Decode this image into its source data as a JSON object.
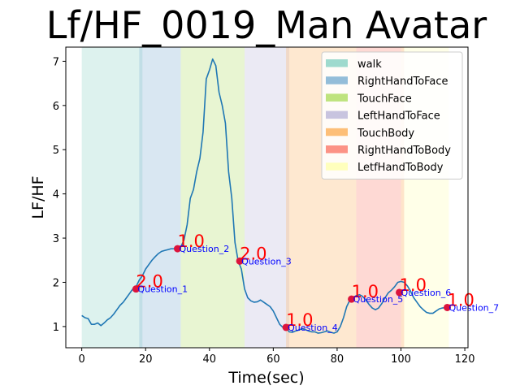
{
  "chart_data": {
    "type": "line",
    "title": "Lf/HF_0019_Man Avatar",
    "xlabel": "Time(sec)",
    "ylabel": "LF/HF",
    "xlim": [
      -5,
      121
    ],
    "ylim": [
      0.52,
      7.32
    ],
    "x_ticks": [
      0,
      20,
      40,
      60,
      80,
      100,
      120
    ],
    "y_ticks": [
      1,
      2,
      3,
      4,
      5,
      6,
      7
    ],
    "grid": false,
    "legend_placement": "top-right",
    "line_color": "#1f77b4",
    "phases": [
      {
        "name": "walk",
        "start": 0,
        "end": 19,
        "color": "#8dd3c7"
      },
      {
        "name": "RightHandToFace",
        "start": 18,
        "end": 31,
        "color": "#80b1d3"
      },
      {
        "name": "TouchFace",
        "start": 31,
        "end": 51,
        "color": "#b3de69"
      },
      {
        "name": "LeftHandToFace",
        "start": 51,
        "end": 65,
        "color": "#bebada"
      },
      {
        "name": "TouchBody",
        "start": 64,
        "end": 86,
        "color": "#fdb462"
      },
      {
        "name": "RightHandToBody",
        "start": 86,
        "end": 101,
        "color": "#fb8072"
      },
      {
        "name": "LetfHandToBody",
        "start": 100,
        "end": 115,
        "color": "#ffffb3"
      }
    ],
    "series": [
      {
        "x": [
          0,
          1,
          2,
          3,
          4,
          5,
          6,
          7,
          8,
          9,
          10,
          11,
          12,
          13,
          14,
          15,
          16,
          17,
          18,
          19,
          20,
          21,
          22,
          23,
          24,
          25,
          26,
          27,
          28,
          29,
          30,
          31,
          32,
          33,
          34,
          35,
          36,
          37,
          38,
          39,
          40,
          41,
          42,
          43,
          44,
          45,
          46,
          47,
          48,
          49,
          50,
          51,
          52,
          53,
          54,
          55,
          56,
          57,
          58,
          59,
          60,
          61,
          62,
          63,
          64,
          65,
          66,
          67,
          68,
          69,
          70,
          71,
          72,
          73,
          74,
          75,
          76,
          77,
          78,
          79,
          80,
          81,
          82,
          83,
          84,
          85,
          86,
          87,
          88,
          89,
          90,
          91,
          92,
          93,
          94,
          95,
          96,
          97,
          98,
          99,
          100,
          101,
          102,
          103,
          104,
          105,
          106,
          107,
          108,
          109,
          110,
          111,
          112,
          113,
          114,
          115
        ],
        "y": [
          1.25,
          1.2,
          1.18,
          1.05,
          1.05,
          1.08,
          1.02,
          1.08,
          1.15,
          1.2,
          1.28,
          1.38,
          1.48,
          1.55,
          1.65,
          1.75,
          1.85,
          1.9,
          2.05,
          2.15,
          2.3,
          2.4,
          2.5,
          2.58,
          2.65,
          2.7,
          2.72,
          2.74,
          2.76,
          2.76,
          2.77,
          2.8,
          2.95,
          3.3,
          3.9,
          4.1,
          4.5,
          4.8,
          5.4,
          6.6,
          6.8,
          7.05,
          6.9,
          6.3,
          6.0,
          5.6,
          4.5,
          3.9,
          2.9,
          2.48,
          2.3,
          1.85,
          1.65,
          1.58,
          1.55,
          1.56,
          1.6,
          1.55,
          1.5,
          1.45,
          1.35,
          1.2,
          1.05,
          0.98,
          0.97,
          0.88,
          0.87,
          0.9,
          0.92,
          0.95,
          0.93,
          0.9,
          0.88,
          0.88,
          0.85,
          0.86,
          0.88,
          0.9,
          0.87,
          0.85,
          0.88,
          1.0,
          1.2,
          1.45,
          1.6,
          1.65,
          1.7,
          1.72,
          1.68,
          1.6,
          1.5,
          1.42,
          1.38,
          1.42,
          1.52,
          1.65,
          1.76,
          1.82,
          1.9,
          2.0,
          2.02,
          2.0,
          1.92,
          1.8,
          1.65,
          1.55,
          1.45,
          1.38,
          1.32,
          1.3,
          1.3,
          1.35,
          1.4,
          1.42,
          1.43,
          1.45
        ]
      }
    ],
    "markers": [
      {
        "x": 17,
        "y": 1.85,
        "label": "Question_1",
        "score": "2.0"
      },
      {
        "x": 30,
        "y": 2.76,
        "label": "Question_2",
        "score": "1.0"
      },
      {
        "x": 49.5,
        "y": 2.48,
        "label": "Question_3",
        "score": "2.0"
      },
      {
        "x": 64,
        "y": 0.98,
        "label": "Question_4",
        "score": "1.0"
      },
      {
        "x": 84.5,
        "y": 1.62,
        "label": "Question_5",
        "score": "1.0"
      },
      {
        "x": 99.5,
        "y": 1.77,
        "label": "Question_6",
        "score": "1.0"
      },
      {
        "x": 114.5,
        "y": 1.43,
        "label": "Question_7",
        "score": "1.0"
      }
    ],
    "marker_color": "#dc143c",
    "question_label_color": "#0000ff",
    "score_label_color": "#ff0000"
  }
}
